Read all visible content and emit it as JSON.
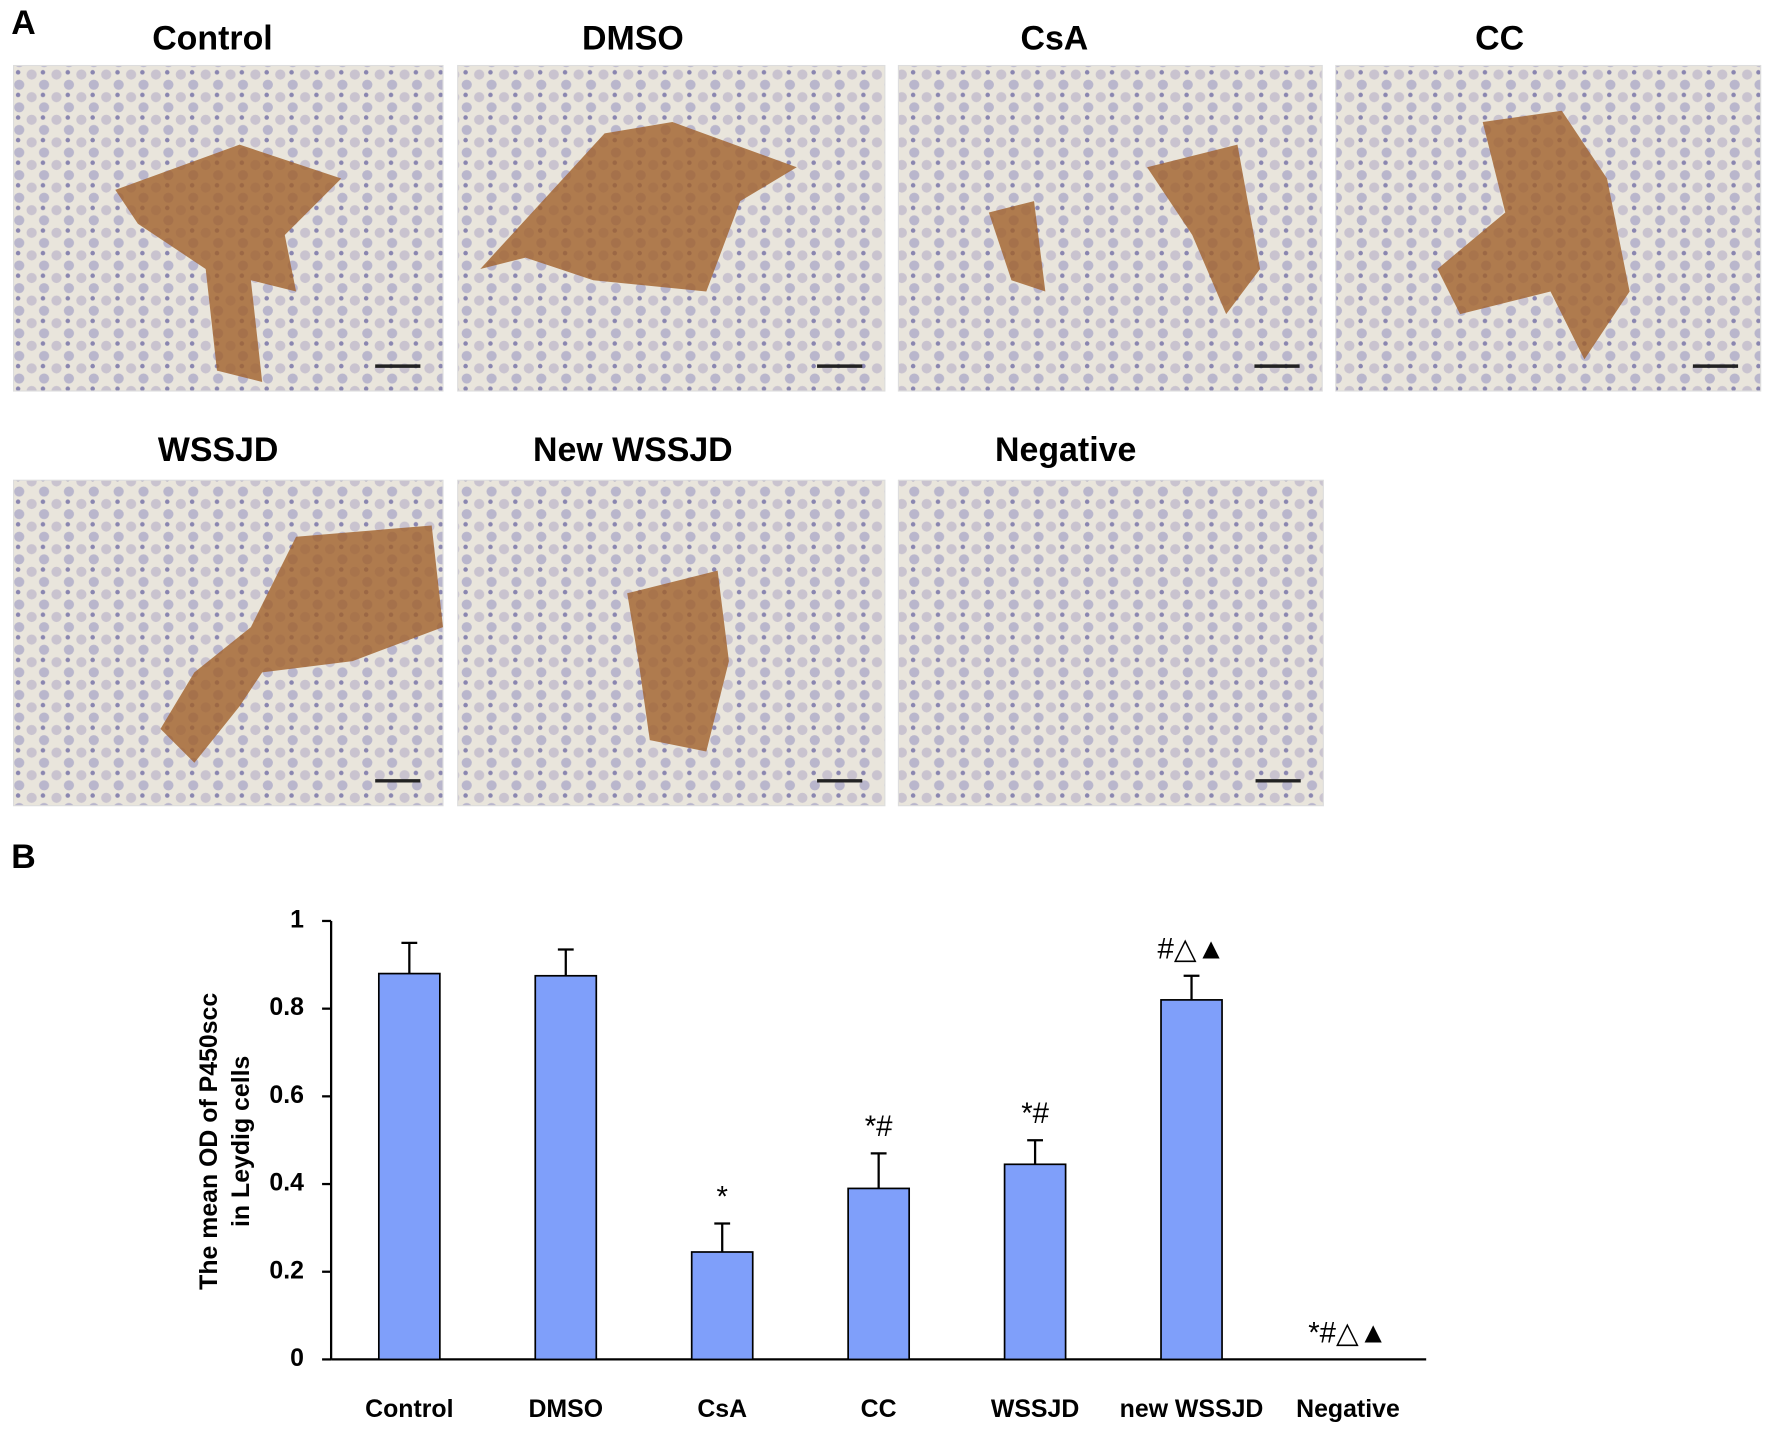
{
  "panel_a": {
    "label": "A",
    "images": [
      "Control",
      "DMSO",
      "CsA",
      "CC",
      "WSSJD",
      "New  WSSJD",
      "Negative"
    ]
  },
  "panel_b": {
    "label": "B"
  },
  "chart_data": {
    "type": "bar",
    "ylabel": [
      "The mean OD of P450scc",
      "in Leydig cells"
    ],
    "categories": [
      "Control",
      "DMSO",
      "CsA",
      "CC",
      "WSSJD",
      "new WSSJD",
      "Negative"
    ],
    "values": [
      0.88,
      0.875,
      0.245,
      0.39,
      0.445,
      0.82,
      0
    ],
    "errors": [
      0.07,
      0.06,
      0.065,
      0.08,
      0.055,
      0.055,
      0
    ],
    "annotations": [
      null,
      null,
      "*",
      "*#",
      "*#",
      "#△▲",
      "*#△▲"
    ],
    "color": "#7f9ffa",
    "ylim": [
      0,
      1
    ],
    "yticks": [
      0,
      0.2,
      0.4,
      0.6,
      0.8,
      1
    ],
    "grid": false
  }
}
